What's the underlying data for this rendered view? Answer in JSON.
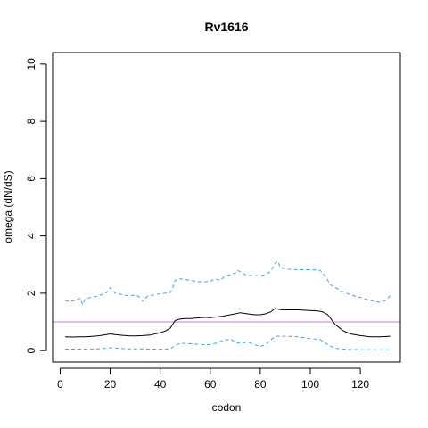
{
  "chart_data": {
    "type": "line",
    "title": "Rv1616",
    "xlabel": "codon",
    "ylabel": "omega (dN/dS)",
    "xlim": [
      -3,
      136
    ],
    "ylim": [
      -0.4,
      10.4
    ],
    "xticks": [
      0,
      20,
      40,
      60,
      80,
      100,
      120
    ],
    "yticks": [
      0,
      2,
      4,
      6,
      8,
      10
    ],
    "reference_line": {
      "y": 1.0,
      "color": "#c77cd6"
    },
    "grid": false,
    "legend": "none",
    "series": [
      {
        "role": "mean",
        "color": "#000000",
        "style": "solid",
        "x": [
          2,
          5,
          8,
          10,
          12,
          15,
          18,
          20,
          22,
          25,
          28,
          30,
          33,
          36,
          40,
          42,
          44,
          46,
          48,
          50,
          52,
          55,
          58,
          60,
          62,
          65,
          68,
          70,
          72,
          75,
          78,
          80,
          82,
          84,
          86,
          88,
          90,
          95,
          100,
          103,
          105,
          107,
          110,
          113,
          116,
          120,
          124,
          128,
          132
        ],
        "y": [
          0.48,
          0.47,
          0.48,
          0.48,
          0.49,
          0.51,
          0.55,
          0.58,
          0.56,
          0.53,
          0.51,
          0.51,
          0.52,
          0.54,
          0.62,
          0.68,
          0.78,
          1.05,
          1.1,
          1.12,
          1.12,
          1.14,
          1.16,
          1.15,
          1.17,
          1.2,
          1.25,
          1.28,
          1.32,
          1.28,
          1.25,
          1.25,
          1.28,
          1.34,
          1.47,
          1.43,
          1.42,
          1.42,
          1.4,
          1.38,
          1.35,
          1.25,
          0.9,
          0.7,
          0.58,
          0.52,
          0.48,
          0.48,
          0.5
        ]
      },
      {
        "role": "upper-bound",
        "color": "#3da5dc",
        "style": "dashed",
        "x": [
          2,
          4,
          6,
          8,
          9,
          10,
          12,
          15,
          18,
          19,
          20,
          21,
          22,
          25,
          28,
          30,
          32,
          33,
          35,
          38,
          40,
          42,
          44,
          45,
          46,
          48,
          50,
          52,
          55,
          58,
          60,
          62,
          64,
          66,
          68,
          70,
          71,
          72,
          74,
          76,
          78,
          80,
          82,
          84,
          86,
          87,
          88,
          90,
          95,
          100,
          104,
          106,
          108,
          110,
          113,
          116,
          120,
          124,
          128,
          130,
          132
        ],
        "y": [
          1.75,
          1.7,
          1.75,
          1.82,
          1.6,
          1.8,
          1.85,
          1.9,
          2.0,
          2.05,
          2.2,
          2.1,
          2.0,
          1.95,
          1.9,
          1.95,
          1.85,
          1.72,
          1.9,
          1.95,
          1.98,
          2.0,
          2.02,
          2.2,
          2.45,
          2.5,
          2.48,
          2.45,
          2.4,
          2.4,
          2.42,
          2.5,
          2.45,
          2.6,
          2.65,
          2.7,
          2.8,
          2.75,
          2.65,
          2.62,
          2.62,
          2.6,
          2.65,
          2.75,
          3.05,
          3.12,
          2.9,
          2.85,
          2.82,
          2.82,
          2.8,
          2.6,
          2.3,
          2.2,
          2.05,
          1.95,
          1.85,
          1.75,
          1.68,
          1.75,
          1.92
        ]
      },
      {
        "role": "lower-bound",
        "color": "#3da5dc",
        "style": "dashed",
        "x": [
          2,
          10,
          15,
          18,
          20,
          22,
          25,
          28,
          32,
          36,
          40,
          44,
          46,
          48,
          50,
          55,
          58,
          60,
          62,
          65,
          68,
          70,
          72,
          75,
          78,
          80,
          82,
          84,
          86,
          88,
          90,
          95,
          100,
          104,
          107,
          110,
          115,
          120,
          125,
          132
        ],
        "y": [
          0.05,
          0.05,
          0.06,
          0.08,
          0.1,
          0.09,
          0.07,
          0.06,
          0.06,
          0.05,
          0.05,
          0.06,
          0.18,
          0.25,
          0.25,
          0.22,
          0.2,
          0.22,
          0.25,
          0.35,
          0.4,
          0.3,
          0.25,
          0.3,
          0.2,
          0.15,
          0.2,
          0.35,
          0.5,
          0.5,
          0.5,
          0.48,
          0.42,
          0.38,
          0.2,
          0.08,
          0.04,
          0.03,
          0.03,
          0.03
        ]
      }
    ]
  }
}
